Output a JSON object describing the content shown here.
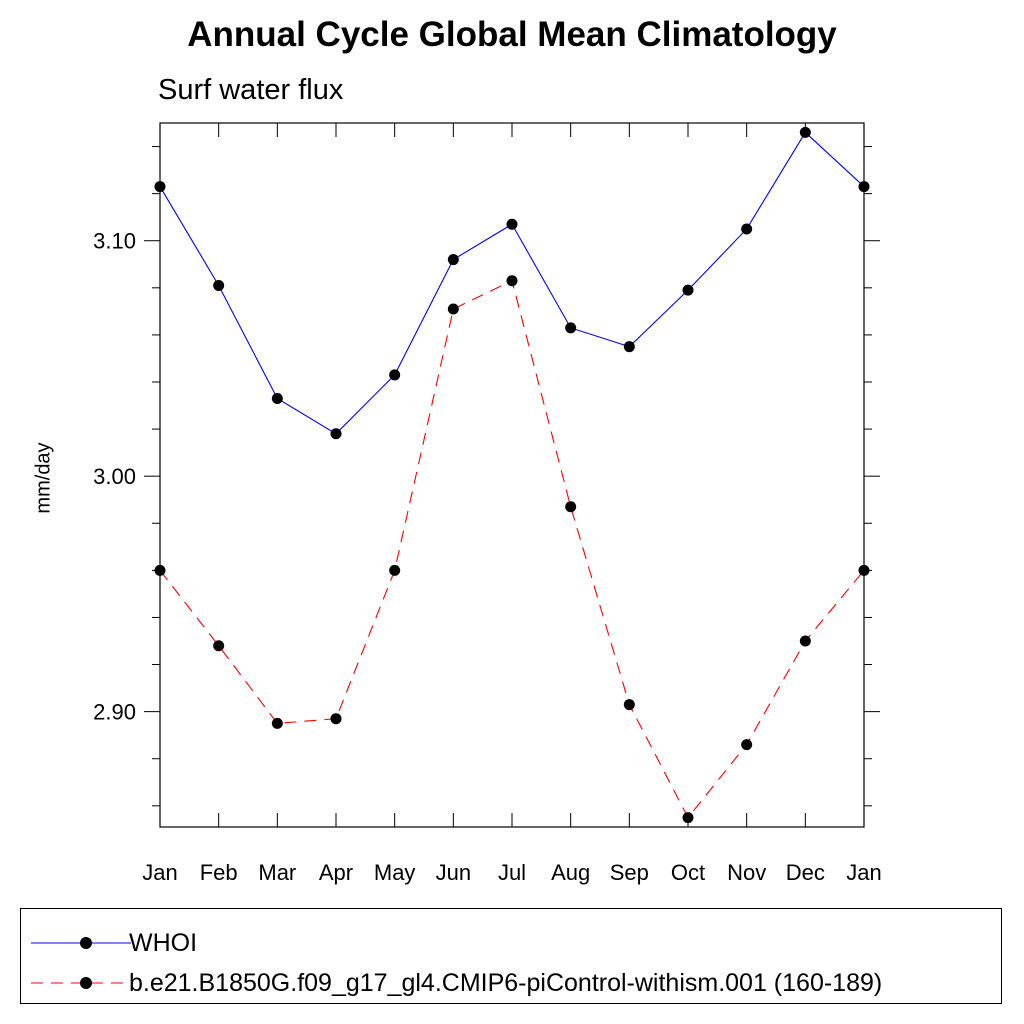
{
  "chart_data": {
    "type": "line",
    "title": "Annual Cycle Global Mean Climatology",
    "subtitle": "Surf water flux",
    "xlabel": "",
    "ylabel": "mm/day",
    "categories": [
      "Jan",
      "Feb",
      "Mar",
      "Apr",
      "May",
      "Jun",
      "Jul",
      "Aug",
      "Sep",
      "Oct",
      "Nov",
      "Dec",
      "Jan"
    ],
    "y_ticks": [
      2.9,
      3.0,
      3.1
    ],
    "y_tick_labels": [
      "2.90",
      "3.00",
      "3.10"
    ],
    "ylim": [
      2.851,
      3.15
    ],
    "grid": false,
    "legend_position": "bottom",
    "series": [
      {
        "name": "WHOI",
        "color": "#0000ff",
        "line_style": "solid",
        "marker": "filled-circle",
        "values": [
          3.123,
          3.081,
          3.033,
          3.018,
          3.043,
          3.092,
          3.107,
          3.063,
          3.055,
          3.079,
          3.105,
          3.146,
          3.123
        ]
      },
      {
        "name": "b.e21.B1850G.f09_g17_gl4.CMIP6-piControl-withism.001 (160-189)",
        "color": "#ff0000",
        "line_style": "dashed",
        "marker": "filled-circle",
        "values": [
          2.96,
          2.928,
          2.895,
          2.897,
          2.96,
          3.071,
          3.083,
          2.987,
          2.903,
          2.855,
          2.886,
          2.93,
          2.96
        ]
      }
    ]
  }
}
